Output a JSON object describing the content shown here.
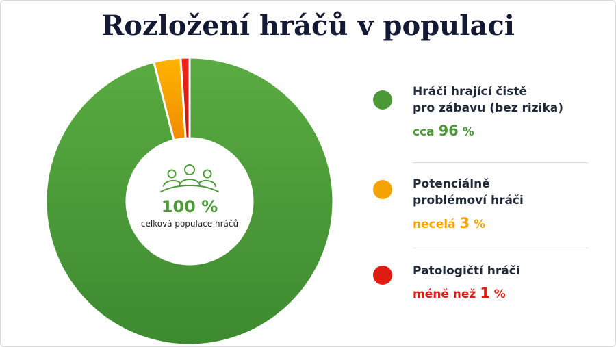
{
  "title": "Rozložení hráčů v populaci",
  "center": {
    "icon": "people-group-icon",
    "total": "100 %",
    "subtitle": "celková populace hráčů"
  },
  "legend": [
    {
      "line1": "Hráči hrající čistě",
      "line2": "pro zábavu (bez rizika)",
      "prefix": "cca",
      "number": "96",
      "unit": "%",
      "color": "#4c9a37"
    },
    {
      "line1": "Potenciálně",
      "line2": "problémoví hráči",
      "prefix": "necelá",
      "number": "3",
      "unit": "%",
      "color": "#f5a300"
    },
    {
      "line1": "Patologičtí hráči",
      "line2": "",
      "prefix": "méně než",
      "number": "1",
      "unit": "%",
      "color": "#e01b12"
    }
  ],
  "chart_data": {
    "type": "pie",
    "title": "Rozložení hráčů v populaci",
    "categories": [
      "Hráči hrající čistě pro zábavu (bez rizika)",
      "Potenciálně problémoví hráči",
      "Patologičtí hráči"
    ],
    "values": [
      96,
      3,
      1
    ],
    "colors": [
      "#4c9a37",
      "#f5a300",
      "#e01b12"
    ],
    "legend_position": "right"
  }
}
